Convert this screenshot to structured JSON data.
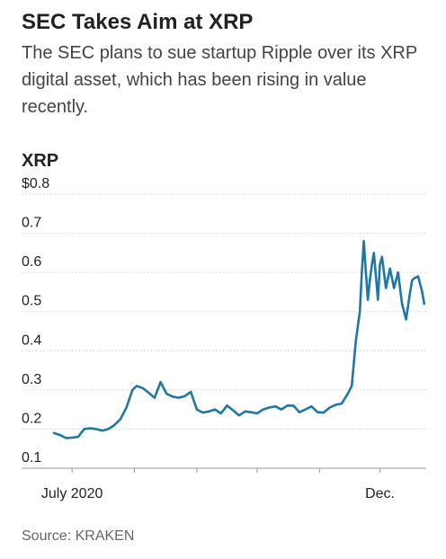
{
  "headline": "SEC Takes Aim at XRP",
  "dek": "The SEC plans to sue startup Ripple over its XRP digital asset, which has been rising in value recently.",
  "source": "Source: KRAKEN",
  "colors": {
    "line": "#1f77a4",
    "grid": "#cfcfcf",
    "axis": "#9a9a9a",
    "text": "#222222"
  },
  "chart_data": {
    "type": "line",
    "title": "XRP",
    "xlabel": "",
    "ylabel": "",
    "ylim": [
      0.1,
      0.8
    ],
    "yticks": [
      {
        "value": 0.8,
        "label": "$0.8"
      },
      {
        "value": 0.7,
        "label": "0.7"
      },
      {
        "value": 0.6,
        "label": "0.6"
      },
      {
        "value": 0.5,
        "label": "0.5"
      },
      {
        "value": 0.4,
        "label": "0.4"
      },
      {
        "value": 0.3,
        "label": "0.3"
      },
      {
        "value": 0.2,
        "label": "0.2"
      },
      {
        "value": 0.1,
        "label": "0.1"
      }
    ],
    "xlim": [
      "2020-06-22",
      "2020-12-24"
    ],
    "xticks": [
      {
        "x": "2020-07-01",
        "label": "July 2020"
      },
      {
        "x": "2020-08-01",
        "label": ""
      },
      {
        "x": "2020-09-01",
        "label": ""
      },
      {
        "x": "2020-10-01",
        "label": ""
      },
      {
        "x": "2020-11-01",
        "label": ""
      },
      {
        "x": "2020-12-01",
        "label": "Dec."
      }
    ],
    "grid": true,
    "series": [
      {
        "name": "",
        "x": [
          "2020-06-22",
          "2020-06-25",
          "2020-06-28",
          "2020-07-01",
          "2020-07-04",
          "2020-07-07",
          "2020-07-10",
          "2020-07-13",
          "2020-07-16",
          "2020-07-19",
          "2020-07-22",
          "2020-07-25",
          "2020-07-28",
          "2020-07-31",
          "2020-08-02",
          "2020-08-05",
          "2020-08-08",
          "2020-08-11",
          "2020-08-14",
          "2020-08-17",
          "2020-08-20",
          "2020-08-23",
          "2020-08-26",
          "2020-08-29",
          "2020-09-01",
          "2020-09-04",
          "2020-09-07",
          "2020-09-10",
          "2020-09-13",
          "2020-09-16",
          "2020-09-19",
          "2020-09-22",
          "2020-09-25",
          "2020-09-28",
          "2020-10-01",
          "2020-10-04",
          "2020-10-07",
          "2020-10-10",
          "2020-10-13",
          "2020-10-16",
          "2020-10-19",
          "2020-10-22",
          "2020-10-25",
          "2020-10-28",
          "2020-10-31",
          "2020-11-03",
          "2020-11-06",
          "2020-11-09",
          "2020-11-12",
          "2020-11-15",
          "2020-11-17",
          "2020-11-19",
          "2020-11-21",
          "2020-11-22",
          "2020-11-23",
          "2020-11-24",
          "2020-11-25",
          "2020-11-26",
          "2020-11-27",
          "2020-11-28",
          "2020-11-30",
          "2020-12-01",
          "2020-12-02",
          "2020-12-04",
          "2020-12-06",
          "2020-12-08",
          "2020-12-10",
          "2020-12-12",
          "2020-12-14",
          "2020-12-16",
          "2020-12-17",
          "2020-12-18",
          "2020-12-20",
          "2020-12-22",
          "2020-12-23"
        ],
        "values": [
          0.19,
          0.185,
          0.177,
          0.178,
          0.18,
          0.2,
          0.202,
          0.2,
          0.196,
          0.2,
          0.21,
          0.225,
          0.255,
          0.3,
          0.31,
          0.305,
          0.293,
          0.28,
          0.32,
          0.29,
          0.283,
          0.28,
          0.284,
          0.295,
          0.25,
          0.242,
          0.245,
          0.25,
          0.24,
          0.26,
          0.248,
          0.235,
          0.245,
          0.243,
          0.24,
          0.25,
          0.255,
          0.258,
          0.25,
          0.26,
          0.26,
          0.243,
          0.25,
          0.258,
          0.243,
          0.242,
          0.255,
          0.262,
          0.265,
          0.29,
          0.31,
          0.425,
          0.5,
          0.6,
          0.68,
          0.6,
          0.53,
          0.58,
          0.62,
          0.65,
          0.53,
          0.62,
          0.64,
          0.56,
          0.61,
          0.56,
          0.6,
          0.52,
          0.48,
          0.55,
          0.58,
          0.585,
          0.59,
          0.55,
          0.52
        ]
      }
    ]
  }
}
